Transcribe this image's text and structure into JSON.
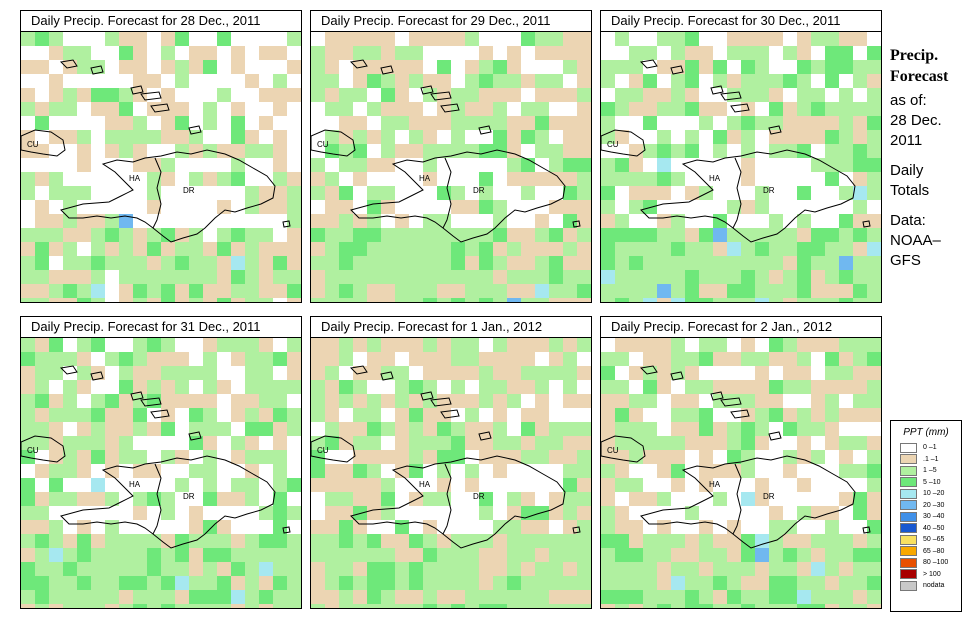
{
  "panels": [
    {
      "title": "Daily Precip. Forecast for  28 Dec., 2011",
      "seed": 11,
      "tan": 0.3,
      "green": 0.25,
      "blue": 0.02
    },
    {
      "title": "Daily Precip. Forecast for  29 Dec., 2011",
      "seed": 23,
      "tan": 0.35,
      "green": 0.4,
      "blue": 0.01
    },
    {
      "title": "Daily Precip. Forecast for  30 Dec., 2011",
      "seed": 37,
      "tan": 0.22,
      "green": 0.45,
      "blue": 0.06
    },
    {
      "title": "Daily Precip. Forecast for  31 Dec., 2011",
      "seed": 41,
      "tan": 0.3,
      "green": 0.45,
      "blue": 0.04
    },
    {
      "title": "Daily Precip. Forecast for  1 Jan., 2012",
      "seed": 53,
      "tan": 0.45,
      "green": 0.4,
      "blue": 0.0
    },
    {
      "title": "Daily Precip. Forecast for  2 Jan., 2012",
      "seed": 67,
      "tan": 0.35,
      "green": 0.4,
      "blue": 0.03
    }
  ],
  "map_labels": {
    "cu": "CU",
    "ha": "HA",
    "dr": "DR"
  },
  "sidebar": {
    "title_line1": "Precip.",
    "title_line2": "Forecast",
    "asof": "as of:",
    "date_line1": "28 Dec.",
    "date_line2": "2011",
    "daily_line1": "Daily",
    "daily_line2": "Totals",
    "data_line1": "Data:",
    "data_line2": "NOAA–",
    "data_line3": "GFS"
  },
  "legend": {
    "title": "PPT (mm)",
    "items": [
      {
        "label": "0 –1",
        "color": "#ffffff"
      },
      {
        "label": ".1 –1",
        "color": "#ecd5b3"
      },
      {
        "label": "1 –5",
        "color": "#b0f0a0"
      },
      {
        "label": "5 –10",
        "color": "#6ee87a"
      },
      {
        "label": "10 –20",
        "color": "#a6e8f0"
      },
      {
        "label": "20 –30",
        "color": "#70b8f0"
      },
      {
        "label": "30 –40",
        "color": "#4090e8"
      },
      {
        "label": "40 –50",
        "color": "#1858d0"
      },
      {
        "label": "50 –65",
        "color": "#f8e060"
      },
      {
        "label": "65 –80",
        "color": "#f8a800"
      },
      {
        "label": "80 –100",
        "color": "#e85000"
      },
      {
        "label": "> 100",
        "color": "#a80000"
      },
      {
        "label": "nodata",
        "color": "#c8c8c8"
      }
    ]
  },
  "fill_colors": {
    "tan": "#ecd5b3",
    "green": "#b0f0a0",
    "green2": "#6ee87a",
    "blue": "#a6e8f0",
    "blue2": "#70b8f0"
  }
}
